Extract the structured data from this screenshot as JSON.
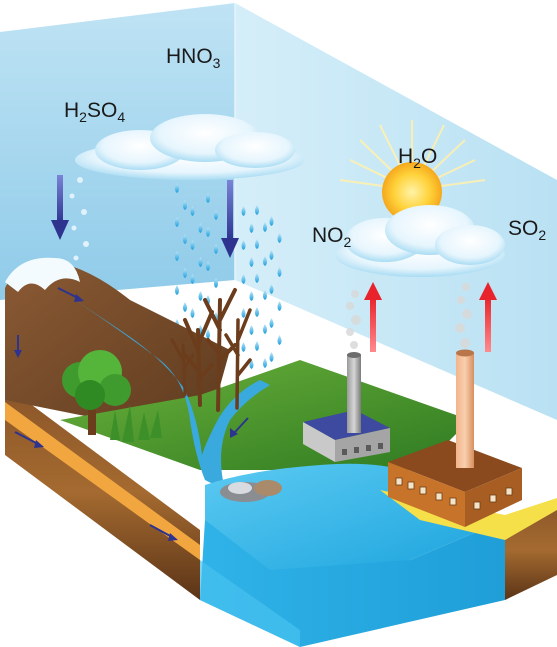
{
  "labels": {
    "hno3": {
      "base": "HNO",
      "sub": "3"
    },
    "h2so4": {
      "pre": "H",
      "sub1": "2",
      "mid": "SO",
      "sub2": "4"
    },
    "h2o": {
      "pre": "H",
      "sub": "2",
      "post": "O"
    },
    "no2": {
      "base": "NO",
      "sub": "2"
    },
    "so2": {
      "base": "SO",
      "sub": "2"
    }
  },
  "colors": {
    "sky": "#9fd4ee",
    "water": "#2fb3e8",
    "grass": "#4f9a2a",
    "soil": "#7a4a24",
    "emission_arrow": "#e8232b",
    "acid_arrow": "#3b3f9c",
    "sun": "#ffc928"
  }
}
